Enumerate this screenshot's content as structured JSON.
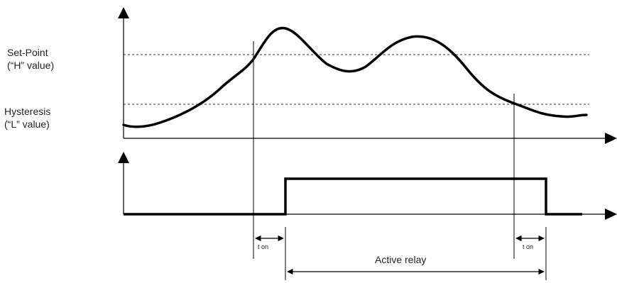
{
  "labels": {
    "setpoint_line1": "Set-Point",
    "setpoint_line2": "(“H” value)",
    "hysteresis_line1": "Hysteresis",
    "hysteresis_line2": "(“L” value)",
    "t_on_left": "t on",
    "t_on_right": "t on",
    "active_relay": "Active relay"
  },
  "colors": {
    "line": "#000000",
    "dashed": "#333333",
    "text": "#222222"
  }
}
